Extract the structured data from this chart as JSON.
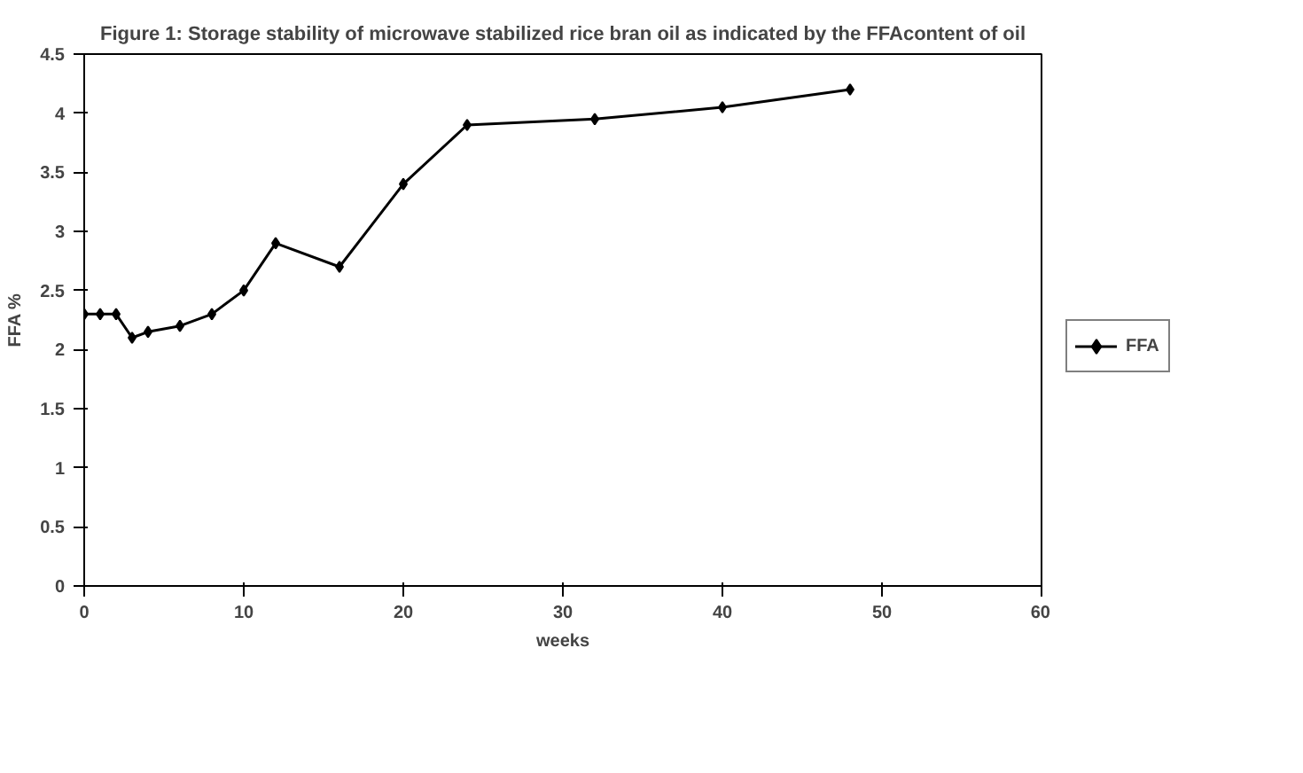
{
  "chart_data": {
    "type": "line",
    "title": "Figure 1: Storage stability of microwave stabilized rice bran oil as indicated by the FFAcontent of oil",
    "xlabel": "weeks",
    "ylabel": "FFA %",
    "x": [
      0,
      1,
      2,
      3,
      4,
      6,
      8,
      10,
      12,
      16,
      20,
      24,
      32,
      40,
      48
    ],
    "series": [
      {
        "name": "FFA",
        "color": "#000000",
        "values": [
          2.3,
          2.3,
          2.3,
          2.1,
          2.15,
          2.2,
          2.3,
          2.5,
          2.9,
          2.7,
          3.4,
          3.9,
          3.95,
          4.05,
          4.2
        ]
      }
    ],
    "xlim": [
      0,
      60
    ],
    "xticks": [
      0,
      10,
      20,
      30,
      40,
      50,
      60
    ],
    "ylim": [
      0,
      4.5
    ],
    "yticks": [
      0,
      0.5,
      1,
      1.5,
      2,
      2.5,
      3,
      3.5,
      4,
      4.5
    ],
    "grid": false,
    "legend": "right",
    "marker": "diamond",
    "line_style": "solid"
  }
}
